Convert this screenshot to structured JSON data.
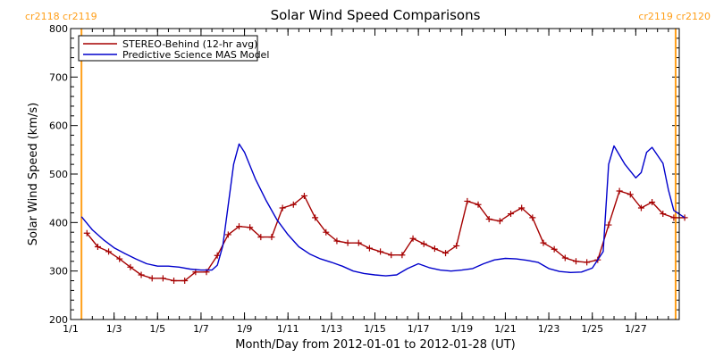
{
  "chart_data": {
    "type": "line",
    "title": "Solar Wind Speed Comparisons",
    "xlabel": "Month/Day from 2012-01-01 to 2012-01-28 (UT)",
    "ylabel": "Solar Wind Speed (km/s)",
    "xlim": [
      "2012-01-01",
      "2012-01-29"
    ],
    "ylim": [
      200,
      800
    ],
    "x_ticks": [
      {
        "date": "2012-01-01",
        "label": "1/1"
      },
      {
        "date": "2012-01-03",
        "label": "1/3"
      },
      {
        "date": "2012-01-05",
        "label": "1/5"
      },
      {
        "date": "2012-01-07",
        "label": "1/7"
      },
      {
        "date": "2012-01-09",
        "label": "1/9"
      },
      {
        "date": "2012-01-11",
        "label": "1/11"
      },
      {
        "date": "2012-01-13",
        "label": "1/13"
      },
      {
        "date": "2012-01-15",
        "label": "1/15"
      },
      {
        "date": "2012-01-17",
        "label": "1/17"
      },
      {
        "date": "2012-01-19",
        "label": "1/19"
      },
      {
        "date": "2012-01-21",
        "label": "1/21"
      },
      {
        "date": "2012-01-23",
        "label": "1/23"
      },
      {
        "date": "2012-01-25",
        "label": "1/25"
      },
      {
        "date": "2012-01-27",
        "label": "1/27"
      }
    ],
    "y_ticks": [
      200,
      300,
      400,
      500,
      600,
      700,
      800
    ],
    "legend_position": "top-left",
    "carrington_markers": [
      {
        "date": "2012-01-01 12:00",
        "label": "cr2118 cr2119",
        "side": "left"
      },
      {
        "date": "2012-01-28 20:00",
        "label": "cr2119 cr2120",
        "side": "right"
      }
    ],
    "colors": {
      "stereo": "#a50000",
      "mas": "#0000cc",
      "marker": "#ff9f1a"
    },
    "series": [
      {
        "name": "STEREO-Behind (12-hr avg)",
        "marker": "plus",
        "points": [
          [
            "2012-01-01 18:00",
            378
          ],
          [
            "2012-01-02 06:00",
            350
          ],
          [
            "2012-01-02 18:00",
            340
          ],
          [
            "2012-01-03 06:00",
            325
          ],
          [
            "2012-01-03 18:00",
            308
          ],
          [
            "2012-01-04 06:00",
            292
          ],
          [
            "2012-01-04 18:00",
            285
          ],
          [
            "2012-01-05 06:00",
            285
          ],
          [
            "2012-01-05 18:00",
            280
          ],
          [
            "2012-01-06 06:00",
            280
          ],
          [
            "2012-01-06 18:00",
            298
          ],
          [
            "2012-01-07 06:00",
            298
          ],
          [
            "2012-01-07 18:00",
            332
          ],
          [
            "2012-01-08 06:00",
            375
          ],
          [
            "2012-01-08 18:00",
            392
          ],
          [
            "2012-01-09 06:00",
            390
          ],
          [
            "2012-01-09 18:00",
            370
          ],
          [
            "2012-01-10 06:00",
            370
          ],
          [
            "2012-01-10 18:00",
            430
          ],
          [
            "2012-01-11 06:00",
            437
          ],
          [
            "2012-01-11 18:00",
            455
          ],
          [
            "2012-01-12 06:00",
            410
          ],
          [
            "2012-01-12 18:00",
            380
          ],
          [
            "2012-01-13 06:00",
            362
          ],
          [
            "2012-01-13 18:00",
            358
          ],
          [
            "2012-01-14 06:00",
            358
          ],
          [
            "2012-01-14 18:00",
            347
          ],
          [
            "2012-01-15 06:00",
            340
          ],
          [
            "2012-01-15 18:00",
            333
          ],
          [
            "2012-01-16 06:00",
            333
          ],
          [
            "2012-01-16 18:00",
            367
          ],
          [
            "2012-01-17 06:00",
            356
          ],
          [
            "2012-01-17 18:00",
            346
          ],
          [
            "2012-01-18 06:00",
            337
          ],
          [
            "2012-01-18 18:00",
            352
          ],
          [
            "2012-01-19 06:00",
            444
          ],
          [
            "2012-01-19 18:00",
            437
          ],
          [
            "2012-01-20 06:00",
            407
          ],
          [
            "2012-01-20 18:00",
            403
          ],
          [
            "2012-01-21 06:00",
            418
          ],
          [
            "2012-01-21 18:00",
            430
          ],
          [
            "2012-01-22 06:00",
            410
          ],
          [
            "2012-01-22 18:00",
            358
          ],
          [
            "2012-01-23 06:00",
            345
          ],
          [
            "2012-01-23 18:00",
            327
          ],
          [
            "2012-01-24 06:00",
            320
          ],
          [
            "2012-01-24 18:00",
            318
          ],
          [
            "2012-01-25 06:00",
            323
          ],
          [
            "2012-01-25 18:00",
            395
          ],
          [
            "2012-01-26 06:00",
            465
          ],
          [
            "2012-01-26 18:00",
            458
          ],
          [
            "2012-01-27 06:00",
            430
          ],
          [
            "2012-01-27 18:00",
            442
          ],
          [
            "2012-01-28 06:00",
            418
          ],
          [
            "2012-01-28 18:00",
            410
          ],
          [
            "2012-01-29 06:00",
            410
          ]
        ]
      },
      {
        "name": "Predictive Science MAS Model",
        "marker": "none",
        "points": [
          [
            "2012-01-01 12:00",
            412
          ],
          [
            "2012-01-02 00:00",
            385
          ],
          [
            "2012-01-02 12:00",
            365
          ],
          [
            "2012-01-03 00:00",
            348
          ],
          [
            "2012-01-03 12:00",
            336
          ],
          [
            "2012-01-04 00:00",
            325
          ],
          [
            "2012-01-04 12:00",
            315
          ],
          [
            "2012-01-05 00:00",
            310
          ],
          [
            "2012-01-05 12:00",
            310
          ],
          [
            "2012-01-06 00:00",
            308
          ],
          [
            "2012-01-06 12:00",
            304
          ],
          [
            "2012-01-07 00:00",
            302
          ],
          [
            "2012-01-07 12:00",
            302
          ],
          [
            "2012-01-07 18:00",
            312
          ],
          [
            "2012-01-08 00:00",
            352
          ],
          [
            "2012-01-08 12:00",
            520
          ],
          [
            "2012-01-08 18:00",
            562
          ],
          [
            "2012-01-09 00:00",
            545
          ],
          [
            "2012-01-09 12:00",
            490
          ],
          [
            "2012-01-10 00:00",
            445
          ],
          [
            "2012-01-10 12:00",
            405
          ],
          [
            "2012-01-11 00:00",
            375
          ],
          [
            "2012-01-11 12:00",
            350
          ],
          [
            "2012-01-12 00:00",
            335
          ],
          [
            "2012-01-12 12:00",
            325
          ],
          [
            "2012-01-13 00:00",
            318
          ],
          [
            "2012-01-13 12:00",
            310
          ],
          [
            "2012-01-14 00:00",
            300
          ],
          [
            "2012-01-14 12:00",
            295
          ],
          [
            "2012-01-15 00:00",
            292
          ],
          [
            "2012-01-15 12:00",
            290
          ],
          [
            "2012-01-16 00:00",
            292
          ],
          [
            "2012-01-16 12:00",
            305
          ],
          [
            "2012-01-17 00:00",
            315
          ],
          [
            "2012-01-17 12:00",
            307
          ],
          [
            "2012-01-18 00:00",
            302
          ],
          [
            "2012-01-18 12:00",
            300
          ],
          [
            "2012-01-19 00:00",
            302
          ],
          [
            "2012-01-19 12:00",
            305
          ],
          [
            "2012-01-20 00:00",
            315
          ],
          [
            "2012-01-20 12:00",
            323
          ],
          [
            "2012-01-21 00:00",
            326
          ],
          [
            "2012-01-21 12:00",
            325
          ],
          [
            "2012-01-22 00:00",
            322
          ],
          [
            "2012-01-22 12:00",
            318
          ],
          [
            "2012-01-23 00:00",
            305
          ],
          [
            "2012-01-23 12:00",
            299
          ],
          [
            "2012-01-24 00:00",
            297
          ],
          [
            "2012-01-24 12:00",
            298
          ],
          [
            "2012-01-25 00:00",
            306
          ],
          [
            "2012-01-25 12:00",
            340
          ],
          [
            "2012-01-25 18:00",
            520
          ],
          [
            "2012-01-26 00:00",
            558
          ],
          [
            "2012-01-26 12:00",
            520
          ],
          [
            "2012-01-27 00:00",
            492
          ],
          [
            "2012-01-27 06:00",
            503
          ],
          [
            "2012-01-27 12:00",
            545
          ],
          [
            "2012-01-27 18:00",
            555
          ],
          [
            "2012-01-28 06:00",
            522
          ],
          [
            "2012-01-28 12:00",
            468
          ],
          [
            "2012-01-28 18:00",
            425
          ],
          [
            "2012-01-29 06:00",
            410
          ]
        ]
      }
    ]
  }
}
